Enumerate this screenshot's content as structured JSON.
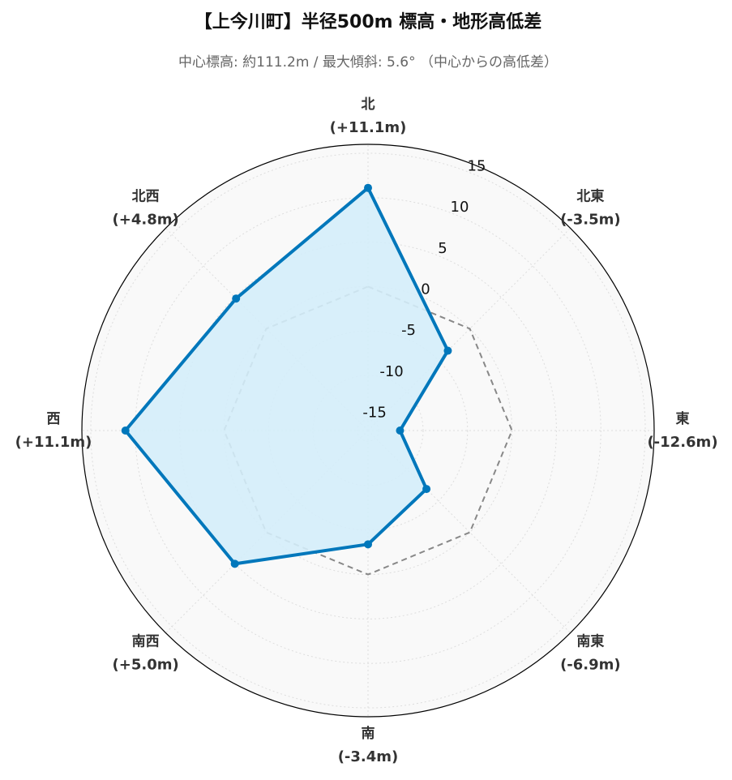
{
  "chart_data": {
    "type": "radar",
    "title": "【上今川町】半径500m 標高・地形高低差",
    "subtitle": "中心標高: 約111.2m / 最大傾斜: 5.6° （中心からの高低差）",
    "categories": [
      "北",
      "北東",
      "東",
      "南東",
      "南",
      "南西",
      "西",
      "北西"
    ],
    "values": [
      11.1,
      -3.5,
      -12.6,
      -6.9,
      -3.4,
      5.0,
      11.1,
      4.8
    ],
    "value_labels": [
      "(+11.1m)",
      "(-3.5m)",
      "(-12.6m)",
      "(-6.9m)",
      "(-3.4m)",
      "(+5.0m)",
      "(+11.1m)",
      "(+4.8m)"
    ],
    "color": "#0077bb",
    "fill": "#d4edf9",
    "baseline": 0,
    "ylim": [
      -16.2,
      16
    ],
    "yticks": [
      -15,
      -10,
      -5,
      0,
      5,
      10,
      15
    ],
    "grid": true
  }
}
